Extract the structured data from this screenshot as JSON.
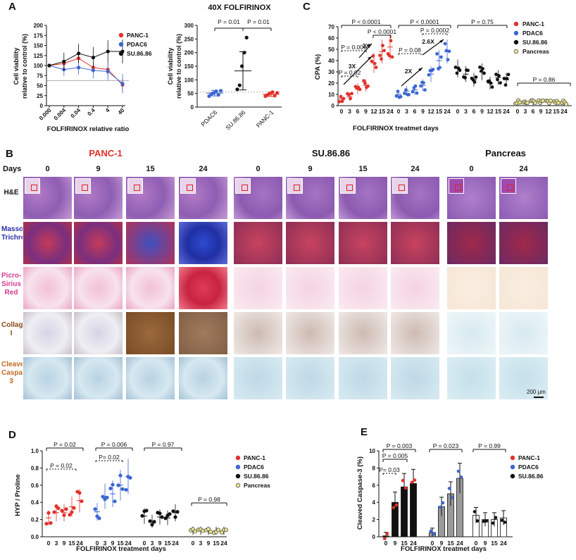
{
  "colors": {
    "panc1": "#e0322b",
    "pdac6": "#3c66d2",
    "su8686": "#111111",
    "pancreas": "#e9e28a",
    "bar_panc1": "#111111",
    "bar_pdac6": "#9a9a9a",
    "bar_su8686": "#ffffff"
  },
  "panelA": {
    "letter": "A",
    "line": {
      "xlabel": "FOLFIRINOX relative ratio",
      "ylabel": "Cell viability relative to control (%)",
      "xticks": [
        "0.000",
        "0.004",
        "0.04",
        "0.4",
        "4",
        "40"
      ],
      "yticks": [
        "0",
        "25",
        "50",
        "75",
        "100",
        "125",
        "150",
        "175",
        "200"
      ],
      "legend": [
        "PANC-1",
        "PDAC6",
        "SU.86.86"
      ]
    },
    "scatter": {
      "title": "40X FOLFIRINOX",
      "ylabel": "Cell viability relative to control (%)",
      "categories": [
        "PDAC6",
        "SU.86.86",
        "PANC-1"
      ],
      "yticks": [
        "0",
        "50",
        "100",
        "150",
        "200",
        "250",
        "300"
      ],
      "p1": "P = 0.01",
      "p2": "P = 0.01"
    }
  },
  "panelC": {
    "letter": "C",
    "ylabel": "CPA (%)",
    "xlabel": "FOLFIRINOX treatmet days",
    "yticks": [
      "0",
      "10",
      "20",
      "30",
      "40",
      "50",
      "60",
      "70"
    ],
    "days": [
      "0",
      "3",
      "6",
      "9",
      "12",
      "15",
      "24"
    ],
    "p_top": [
      "P < 0.0001",
      "P < 0.0001",
      "P = 0.75",
      "P = 0.86"
    ],
    "p_inner": [
      "P < 0.0001",
      "P = 0.006",
      "P = 0.02",
      "P = 0.08",
      "P = 0.0002"
    ],
    "folds": [
      "3X",
      "3X",
      "2X",
      "2.6X"
    ],
    "legend": [
      "PANC-1",
      "PDAC6",
      "SU.86.86",
      "Pancreas"
    ]
  },
  "panelB": {
    "letter": "B",
    "days_label": "Days",
    "groups": [
      "PANC-1",
      "SU.86.86",
      "Pancreas"
    ],
    "days": [
      [
        "0",
        "9",
        "15",
        "24"
      ],
      [
        "0",
        "9",
        "15",
        "24"
      ],
      [
        "0",
        "24"
      ]
    ],
    "rows": [
      "H&E",
      "Masson's Trichrome",
      "Picro-Sirius Red",
      "Collagen I",
      "Cleaved Caspase-3"
    ],
    "scale": "200 μm"
  },
  "panelD": {
    "letter": "D",
    "ylabel": "HYP / Proline",
    "xlabel": "FOLFIRINOX treatment days",
    "yticks": [
      "0.0",
      "0.2",
      "0.4",
      "0.6",
      "0.8",
      "1.0"
    ],
    "days": [
      "0",
      "3",
      "9",
      "15",
      "24"
    ],
    "p_top": [
      "P = 0.02",
      "P = 0.006",
      "P = 0.97",
      "P = 0.98"
    ],
    "p_inner": [
      "P = 0.02",
      "P= 0.02"
    ],
    "legend": [
      "PANC-1",
      "PDAC6",
      "SU.86.86",
      "Pancreas"
    ]
  },
  "panelE": {
    "letter": "E",
    "ylabel": "Cleaved Caspase-3  (%)",
    "xlabel": "FOLFIRINOX treatmet days",
    "yticks": [
      "0",
      "2",
      "4",
      "6",
      "8",
      "10"
    ],
    "days": [
      "0",
      "9",
      "15",
      "24"
    ],
    "p_top": [
      "P = 0.003",
      "P = 0.023",
      "P = 0.99"
    ],
    "p_inner": [
      "P = 0.005",
      "P= 0.03"
    ],
    "legend": [
      "PANC-1",
      "PDAC6",
      "SU.86.86"
    ]
  },
  "chart_data": [
    {
      "type": "line",
      "panel": "A-left",
      "title": "",
      "xlabel": "FOLFIRINOX relative ratio",
      "ylabel": "Cell viability relative to control (%)",
      "categories": [
        "0.000",
        "0.004",
        "0.04",
        "0.4",
        "4",
        "40"
      ],
      "ylim": [
        0,
        200
      ],
      "series": [
        {
          "name": "PANC-1",
          "values": [
            100,
            105,
            118,
            95,
            90,
            52
          ]
        },
        {
          "name": "PDAC6",
          "values": [
            100,
            90,
            95,
            88,
            85,
            55
          ]
        },
        {
          "name": "SU.86.86",
          "values": [
            100,
            110,
            130,
            120,
            135,
            135
          ]
        }
      ]
    },
    {
      "type": "scatter",
      "panel": "A-right",
      "title": "40X FOLFIRINOX",
      "ylabel": "Cell viability relative to control (%)",
      "categories": [
        "PDAC6",
        "SU.86.86",
        "PANC-1"
      ],
      "ylim": [
        0,
        300
      ],
      "series": [
        {
          "name": "PDAC6",
          "mean": 51,
          "sd": 10,
          "points": [
            40,
            48,
            52,
            58,
            45,
            60
          ]
        },
        {
          "name": "SU.86.86",
          "mean": 133,
          "sd": 70,
          "points": [
            65,
            80,
            150,
            200,
            255
          ]
        },
        {
          "name": "PANC-1",
          "mean": 47,
          "sd": 8,
          "points": [
            40,
            45,
            50,
            55,
            42,
            52
          ]
        }
      ]
    },
    {
      "type": "scatter",
      "panel": "C",
      "ylabel": "CPA (%)",
      "xlabel": "FOLFIRINOX treatmet days",
      "categories": [
        "0",
        "3",
        "6",
        "9",
        "12",
        "15",
        "24"
      ],
      "ylim": [
        0,
        70
      ],
      "series": [
        {
          "name": "PANC-1",
          "means": [
            6,
            8,
            15,
            18,
            38,
            48,
            52
          ]
        },
        {
          "name": "PDAC6",
          "means": [
            10,
            13,
            14,
            18,
            28,
            40,
            48
          ]
        },
        {
          "name": "SU.86.86",
          "means": [
            33,
            28,
            23,
            30,
            20,
            25,
            23
          ]
        },
        {
          "name": "Pancreas",
          "means": [
            3,
            3,
            3,
            3,
            3,
            3,
            3
          ]
        }
      ]
    },
    {
      "type": "scatter",
      "panel": "D",
      "ylabel": "HYP / Proline",
      "xlabel": "FOLFIRINOX treatment days",
      "categories": [
        "0",
        "3",
        "9",
        "15",
        "24"
      ],
      "ylim": [
        0,
        1
      ],
      "series": [
        {
          "name": "PANC-1",
          "means": [
            0.22,
            0.28,
            0.28,
            0.35,
            0.42
          ]
        },
        {
          "name": "PDAC6",
          "means": [
            0.29,
            0.47,
            0.5,
            0.6,
            0.7
          ]
        },
        {
          "name": "SU.86.86",
          "means": [
            0.24,
            0.18,
            0.23,
            0.22,
            0.28
          ]
        },
        {
          "name": "Pancreas",
          "means": [
            0.07,
            0.07,
            0.07,
            0.07,
            0.07
          ]
        }
      ]
    },
    {
      "type": "bar",
      "panel": "E",
      "ylabel": "Cleaved Caspase-3  (%)",
      "xlabel": "FOLFIRINOX treatmet days",
      "categories": [
        "0",
        "9",
        "15",
        "24"
      ],
      "ylim": [
        0,
        10
      ],
      "series": [
        {
          "name": "PANC-1",
          "values": [
            0.1,
            4.0,
            5.8,
            6.2
          ]
        },
        {
          "name": "PDAC6",
          "values": [
            0.5,
            3.5,
            5.0,
            6.8
          ]
        },
        {
          "name": "SU.86.86",
          "values": [
            2.5,
            2.0,
            2.0,
            2.2
          ]
        }
      ]
    }
  ]
}
